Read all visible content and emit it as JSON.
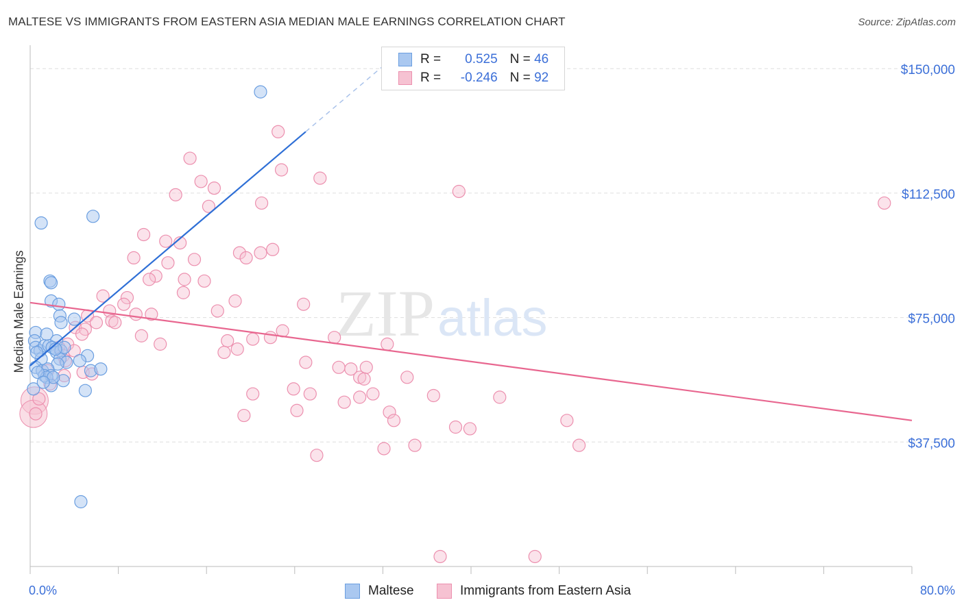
{
  "title": "MALTESE VS IMMIGRANTS FROM EASTERN ASIA MEDIAN MALE EARNINGS CORRELATION CHART",
  "source": "Source: ZipAtlas.com",
  "watermark": {
    "zip": "ZIP",
    "atlas": "atlas"
  },
  "legend": {
    "r_label": "R =",
    "n_label": "N =",
    "rows": [
      {
        "r": "0.525",
        "n": "46"
      },
      {
        "r": "-0.246",
        "n": "92"
      }
    ]
  },
  "colors": {
    "maltese_fill": "#aac8f0",
    "maltese_stroke": "#6a9ee0",
    "maltese_line": "#2e6fd6",
    "eastasia_fill": "#f6c2d2",
    "eastasia_stroke": "#ec8fae",
    "eastasia_line": "#e8668f",
    "tick_text": "#3b6fd8",
    "grid": "#dddddd"
  },
  "chart_data": {
    "type": "scatter",
    "title": "MALTESE VS IMMIGRANTS FROM EASTERN ASIA MEDIAN MALE EARNINGS CORRELATION CHART",
    "xlabel": "",
    "ylabel": "Median Male Earnings",
    "xlim": [
      0,
      80
    ],
    "ylim": [
      0,
      155000
    ],
    "x_tick_labels": [
      "0.0%",
      "80.0%"
    ],
    "y_ticks": [
      37500,
      75000,
      112500,
      150000
    ],
    "y_tick_labels": [
      "$37,500",
      "$75,000",
      "$112,500",
      "$150,000"
    ],
    "grid": "horizontal dashed",
    "legend_position": "top-center",
    "series": [
      {
        "name": "Maltese",
        "r": 0.525,
        "n": 46,
        "trend": {
          "x0": 0.0,
          "y0": 60500,
          "x1": 25.0,
          "y1": 131000,
          "dash_to_x": 32.0
        },
        "points": [
          [
            20.9,
            143000
          ],
          [
            1.0,
            103500
          ],
          [
            5.7,
            105500
          ],
          [
            1.8,
            86000
          ],
          [
            1.9,
            85500
          ],
          [
            1.9,
            80000
          ],
          [
            2.6,
            79000
          ],
          [
            2.7,
            75500
          ],
          [
            2.8,
            73500
          ],
          [
            4.0,
            74500
          ],
          [
            0.5,
            70500
          ],
          [
            0.4,
            68000
          ],
          [
            1.5,
            70000
          ],
          [
            2.4,
            68000
          ],
          [
            0.5,
            66000
          ],
          [
            0.9,
            65000
          ],
          [
            1.3,
            66500
          ],
          [
            1.7,
            66500
          ],
          [
            2.0,
            66000
          ],
          [
            2.4,
            64500
          ],
          [
            2.8,
            65000
          ],
          [
            1.0,
            62500
          ],
          [
            2.7,
            62500
          ],
          [
            3.3,
            61500
          ],
          [
            5.2,
            63500
          ],
          [
            2.5,
            61000
          ],
          [
            0.5,
            60000
          ],
          [
            1.1,
            59000
          ],
          [
            1.6,
            59500
          ],
          [
            5.5,
            59000
          ],
          [
            6.4,
            59500
          ],
          [
            1.3,
            57500
          ],
          [
            1.9,
            57500
          ],
          [
            3.0,
            56000
          ],
          [
            4.5,
            62000
          ],
          [
            1.5,
            57000
          ],
          [
            5.0,
            53000
          ],
          [
            0.3,
            53500
          ],
          [
            1.9,
            54500
          ],
          [
            4.6,
            19500
          ],
          [
            2.1,
            57000
          ],
          [
            0.7,
            58500
          ],
          [
            3.1,
            66000
          ],
          [
            2.3,
            65500
          ],
          [
            0.6,
            64500
          ],
          [
            1.2,
            55500
          ]
        ]
      },
      {
        "name": "Immigrants from Eastern Asia",
        "r": -0.246,
        "n": 92,
        "trend": {
          "x0": 0.0,
          "y0": 79500,
          "x1": 80.0,
          "y1": 44000
        },
        "points": [
          [
            22.5,
            131000
          ],
          [
            14.5,
            123000
          ],
          [
            22.8,
            119500
          ],
          [
            26.3,
            117000
          ],
          [
            15.5,
            116000
          ],
          [
            16.7,
            114000
          ],
          [
            13.2,
            112000
          ],
          [
            38.9,
            113000
          ],
          [
            21.0,
            109500
          ],
          [
            77.5,
            109500
          ],
          [
            16.2,
            108500
          ],
          [
            10.3,
            100000
          ],
          [
            12.3,
            98000
          ],
          [
            13.6,
            97500
          ],
          [
            22.0,
            95500
          ],
          [
            19.0,
            94500
          ],
          [
            20.9,
            94500
          ],
          [
            9.4,
            93000
          ],
          [
            14.9,
            92500
          ],
          [
            12.5,
            91500
          ],
          [
            19.6,
            93000
          ],
          [
            11.4,
            87500
          ],
          [
            10.8,
            86500
          ],
          [
            14.0,
            86500
          ],
          [
            15.8,
            86000
          ],
          [
            13.9,
            82500
          ],
          [
            6.6,
            81500
          ],
          [
            8.8,
            81000
          ],
          [
            18.6,
            80000
          ],
          [
            8.5,
            79000
          ],
          [
            24.8,
            79000
          ],
          [
            7.2,
            77000
          ],
          [
            17.0,
            77000
          ],
          [
            9.6,
            76000
          ],
          [
            11.0,
            76000
          ],
          [
            5.2,
            75500
          ],
          [
            7.4,
            74000
          ],
          [
            6.0,
            73500
          ],
          [
            7.7,
            73500
          ],
          [
            4.1,
            72000
          ],
          [
            5.0,
            71500
          ],
          [
            22.9,
            71000
          ],
          [
            4.7,
            70000
          ],
          [
            10.1,
            69500
          ],
          [
            21.8,
            69000
          ],
          [
            20.2,
            68500
          ],
          [
            27.6,
            69000
          ],
          [
            17.9,
            68000
          ],
          [
            3.4,
            67000
          ],
          [
            11.8,
            67000
          ],
          [
            32.4,
            67000
          ],
          [
            2.6,
            66000
          ],
          [
            4.0,
            65000
          ],
          [
            18.8,
            65500
          ],
          [
            17.6,
            64500
          ],
          [
            3.0,
            63500
          ],
          [
            3.2,
            62000
          ],
          [
            25.0,
            61500
          ],
          [
            28.0,
            60000
          ],
          [
            30.5,
            60000
          ],
          [
            29.1,
            59500
          ],
          [
            4.8,
            58500
          ],
          [
            5.6,
            58000
          ],
          [
            3.1,
            57500
          ],
          [
            29.9,
            57000
          ],
          [
            30.3,
            56500
          ],
          [
            34.2,
            57000
          ],
          [
            1.8,
            55000
          ],
          [
            20.2,
            52000
          ],
          [
            23.9,
            53500
          ],
          [
            25.4,
            52000
          ],
          [
            31.1,
            52000
          ],
          [
            29.9,
            51000
          ],
          [
            36.6,
            51500
          ],
          [
            42.6,
            51000
          ],
          [
            28.5,
            49500
          ],
          [
            24.2,
            47000
          ],
          [
            32.6,
            46500
          ],
          [
            19.4,
            45500
          ],
          [
            33.0,
            44000
          ],
          [
            48.7,
            44000
          ],
          [
            38.6,
            42000
          ],
          [
            39.9,
            41500
          ],
          [
            34.9,
            36500
          ],
          [
            49.8,
            36500
          ],
          [
            32.1,
            35500
          ],
          [
            26.0,
            33500
          ],
          [
            37.2,
            3000
          ],
          [
            45.8,
            3000
          ],
          [
            0.8,
            50500
          ],
          [
            0.5,
            46000
          ],
          [
            1.6,
            59000
          ]
        ],
        "large_points": [
          [
            0.4,
            50000
          ],
          [
            0.3,
            46000
          ]
        ]
      }
    ]
  }
}
